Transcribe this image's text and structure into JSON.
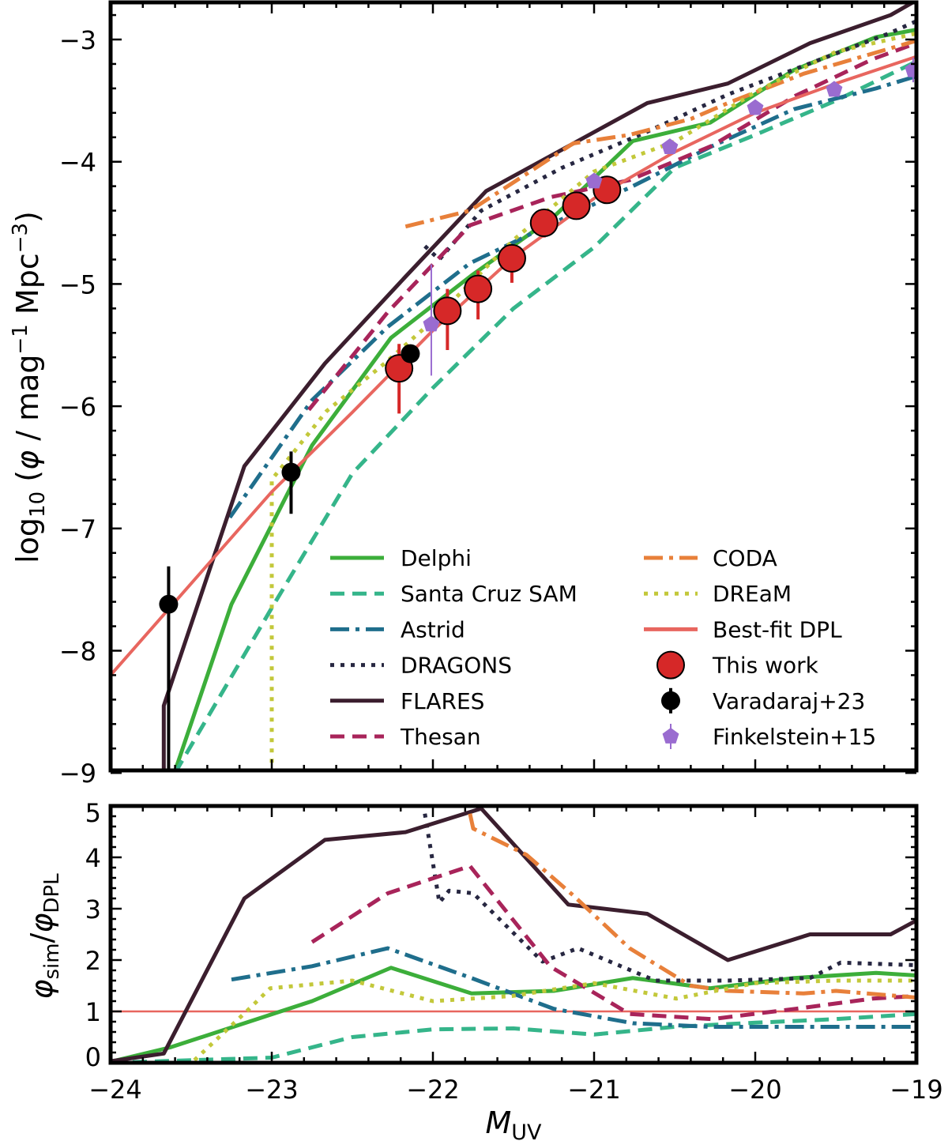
{
  "chart_data": [
    {
      "type": "line",
      "panel": "top",
      "ylabel": "log10(φ / mag^-1 Mpc^-3)",
      "xlim": [
        -24,
        -19
      ],
      "ylim": [
        -9,
        -2.7
      ],
      "xticks": [
        "−24",
        "−23",
        "−22",
        "−21",
        "−20",
        "−19"
      ],
      "yticks": [
        "−9",
        "−8",
        "−7",
        "−6",
        "−5",
        "−4",
        "−3"
      ],
      "ytick_values": [
        -9,
        -8,
        -7,
        -6,
        -5,
        -4,
        -3
      ],
      "grid": false,
      "legend_placement": "lower-right",
      "series": [
        {
          "name": "Delphi",
          "color": "#3cae3a",
          "style": "solid",
          "x": [
            -23.63,
            -23.25,
            -22.75,
            -22.26,
            -21.76,
            -21.25,
            -20.76,
            -20.28,
            -19.76,
            -19.25,
            -19.0
          ],
          "y": [
            -9.1,
            -7.62,
            -6.32,
            -5.44,
            -4.93,
            -4.45,
            -3.83,
            -3.68,
            -3.25,
            -2.98,
            -2.92
          ]
        },
        {
          "name": "Santa Cruz SAM",
          "color": "#35b58a",
          "style": "dashed",
          "x": [
            -23.6,
            -23.0,
            -22.5,
            -22.0,
            -21.5,
            -21.0,
            -20.5,
            -20.0,
            -19.5,
            -19.0
          ],
          "y": [
            -9.0,
            -7.65,
            -6.55,
            -5.85,
            -5.2,
            -4.7,
            -4.05,
            -3.78,
            -3.5,
            -3.18
          ]
        },
        {
          "name": "Astrid",
          "color": "#1f6e8c",
          "style": "dashdot",
          "x": [
            -23.26,
            -22.75,
            -22.28,
            -21.77,
            -21.25,
            -20.76,
            -20.28,
            -19.76,
            -19.25,
            -19.0
          ],
          "y": [
            -6.91,
            -5.95,
            -5.35,
            -4.83,
            -4.5,
            -4.2,
            -3.88,
            -3.57,
            -3.4,
            -3.3
          ]
        },
        {
          "name": "DRAGONS",
          "color": "#272741",
          "style": "dotted",
          "x": [
            -22.05,
            -21.96,
            -21.7,
            -21.2,
            -20.68,
            -20.17,
            -19.67,
            -19.17,
            -19.0
          ],
          "y": [
            -4.69,
            -4.8,
            -4.4,
            -4.05,
            -3.76,
            -3.45,
            -3.2,
            -2.95,
            -2.85
          ]
        },
        {
          "name": "FLARES",
          "color": "#3b1e2e",
          "style": "solid",
          "x": [
            -23.67,
            -23.67,
            -23.17,
            -22.67,
            -22.17,
            -21.67,
            -21.17,
            -20.67,
            -20.17,
            -19.66,
            -19.16,
            -19.0
          ],
          "y": [
            -9.0,
            -8.45,
            -6.49,
            -5.65,
            -4.94,
            -4.24,
            -3.88,
            -3.52,
            -3.36,
            -3.03,
            -2.8,
            -2.68
          ]
        },
        {
          "name": "Thesan",
          "color": "#a8245a",
          "style": "dashed",
          "x": [
            -22.77,
            -22.28,
            -21.77,
            -21.27,
            -20.78,
            -20.27,
            -19.75,
            -19.27,
            -19.0
          ],
          "y": [
            -6.03,
            -5.23,
            -4.52,
            -4.29,
            -4.15,
            -3.87,
            -3.46,
            -3.16,
            -3.03
          ]
        },
        {
          "name": "CODA",
          "color": "#e8803a",
          "style": "dashdot",
          "x": [
            -22.17,
            -21.77,
            -21.42,
            -21.13,
            -20.78,
            -20.4,
            -20.17,
            -19.7,
            -19.0
          ],
          "y": [
            -4.53,
            -4.4,
            -4.1,
            -3.85,
            -3.78,
            -3.65,
            -3.52,
            -3.28,
            -3.01
          ]
        },
        {
          "name": "DREaM",
          "color": "#c3c83a",
          "style": "dotted",
          "x": [
            -23.0,
            -23.0,
            -22.66,
            -22.3,
            -22.0,
            -21.5,
            -21.0,
            -20.49,
            -20.0,
            -19.5,
            -19.0
          ],
          "y": [
            -9.0,
            -6.6,
            -6.04,
            -5.65,
            -5.3,
            -4.64,
            -4.08,
            -3.83,
            -3.43,
            -3.1,
            -2.95
          ]
        },
        {
          "name": "Best-fit DPL",
          "color": "#e8665f",
          "style": "solid",
          "x": [
            -24,
            -23.5,
            -23,
            -22.5,
            -22,
            -21.5,
            -21,
            -20.5,
            -20,
            -19.5,
            -19
          ],
          "y": [
            -8.2,
            -7.45,
            -6.7,
            -6.05,
            -5.38,
            -4.78,
            -4.3,
            -3.92,
            -3.6,
            -3.36,
            -3.14
          ]
        }
      ],
      "points": [
        {
          "name": "This work",
          "color": "#d62828",
          "marker": "circle",
          "x": [
            -22.21,
            -21.91,
            -21.72,
            -21.51,
            -21.31,
            -21.11,
            -20.92
          ],
          "y": [
            -5.69,
            -5.22,
            -5.04,
            -4.79,
            -4.5,
            -4.36,
            -4.23
          ],
          "err_lo": [
            0.37,
            0.32,
            0.25,
            0.2,
            0.12,
            0.08,
            0.06
          ],
          "err_hi": [
            0.2,
            0.18,
            0.15,
            0.1,
            0.1,
            0.08,
            0.06
          ]
        },
        {
          "name": "Varadaraj+23",
          "color": "#000000",
          "marker": "circle",
          "x": [
            -23.64,
            -22.88,
            -22.14
          ],
          "y": [
            -7.62,
            -6.54,
            -5.57
          ],
          "err_lo": [
            1.5,
            0.34,
            0.05
          ],
          "err_hi": [
            0.31,
            0.17,
            0.05
          ]
        },
        {
          "name": "Finkelstein+15",
          "color": "#9a6cd0",
          "marker": "pentagon",
          "x": [
            -22.01,
            -21.0,
            -20.53,
            -20.0,
            -19.51,
            -19.02
          ],
          "y": [
            -5.33,
            -4.16,
            -3.88,
            -3.56,
            -3.41,
            -3.25
          ],
          "err_lo": [
            0.42,
            0.05,
            0.05,
            0.05,
            0.05,
            0.1
          ],
          "err_hi": [
            0.49,
            0.05,
            0.05,
            0.05,
            0.05,
            0.1
          ]
        }
      ]
    },
    {
      "type": "line",
      "panel": "bottom",
      "ylabel": "φ_sim/φ_DPL",
      "xlabel": "M_UV",
      "xlim": [
        -24,
        -19
      ],
      "ylim": [
        0,
        5
      ],
      "xticks": [
        "−24",
        "−23",
        "−22",
        "−21",
        "−20",
        "−19"
      ],
      "yticks": [
        "0",
        "1",
        "2",
        "3",
        "4",
        "5"
      ],
      "ytick_values": [
        0,
        1,
        2,
        3,
        4,
        5
      ],
      "grid": false,
      "reference_line": 1,
      "series": [
        {
          "name": "Delphi",
          "x": [
            -24,
            -23.63,
            -22.75,
            -22.26,
            -21.76,
            -21.25,
            -20.76,
            -20.28,
            -19.76,
            -19.25,
            -19
          ],
          "y": [
            0.02,
            0.3,
            1.2,
            1.85,
            1.35,
            1.4,
            1.65,
            1.45,
            1.65,
            1.75,
            1.7
          ]
        },
        {
          "name": "Santa Cruz SAM",
          "x": [
            -24,
            -23.5,
            -23,
            -22.5,
            -22,
            -21.5,
            -21,
            -20.5,
            -20,
            -19.5,
            -19
          ],
          "y": [
            0.0,
            0.05,
            0.1,
            0.5,
            0.65,
            0.67,
            0.55,
            0.7,
            0.78,
            0.85,
            0.95
          ]
        },
        {
          "name": "Astrid",
          "x": [
            -23.25,
            -22.75,
            -22.28,
            -21.77,
            -21.25,
            -20.76,
            -20.28,
            -19.76,
            -19.25,
            -19
          ],
          "y": [
            1.62,
            1.88,
            2.23,
            1.66,
            1.05,
            0.77,
            0.7,
            0.7,
            0.7,
            0.7
          ]
        },
        {
          "name": "DRAGONS",
          "x": [
            -22.05,
            -21.96,
            -21.9,
            -21.75,
            -21.32,
            -21.1,
            -20.62,
            -20.17,
            -19.66,
            -19.47,
            -19
          ],
          "y": [
            4.85,
            3.12,
            3.35,
            3.3,
            1.97,
            2.23,
            1.6,
            1.6,
            1.65,
            1.95,
            1.9
          ]
        },
        {
          "name": "FLARES",
          "x": [
            -24,
            -23.67,
            -23.17,
            -22.67,
            -22.17,
            -21.7,
            -21.16,
            -20.67,
            -20.17,
            -19.66,
            -19.16,
            -19
          ],
          "y": [
            0.03,
            0.18,
            3.2,
            4.34,
            4.49,
            4.95,
            3.08,
            2.9,
            2.0,
            2.5,
            2.5,
            2.77
          ]
        },
        {
          "name": "Thesan",
          "x": [
            -22.75,
            -22.28,
            -21.77,
            -21.27,
            -20.78,
            -20.27,
            -19.75,
            -19.27,
            -19
          ],
          "y": [
            2.35,
            3.3,
            3.83,
            1.87,
            0.95,
            0.85,
            1.05,
            1.25,
            1.3
          ]
        },
        {
          "name": "CODA",
          "x": [
            -21.77,
            -21.75,
            -21.42,
            -21.13,
            -20.78,
            -20.4,
            -20.17,
            -19.7,
            -19.5,
            -19
          ],
          "y": [
            4.85,
            4.56,
            4.05,
            3.26,
            2.23,
            1.5,
            1.4,
            1.35,
            1.4,
            1.27
          ]
        },
        {
          "name": "DREaM",
          "x": [
            -23.48,
            -23.14,
            -23.01,
            -22.5,
            -22.0,
            -21.51,
            -21.0,
            -20.49,
            -20.0,
            -19.5,
            -19
          ],
          "y": [
            0.05,
            1.05,
            1.45,
            1.6,
            1.2,
            1.3,
            1.55,
            1.25,
            1.55,
            1.6,
            1.6
          ]
        }
      ]
    }
  ]
}
